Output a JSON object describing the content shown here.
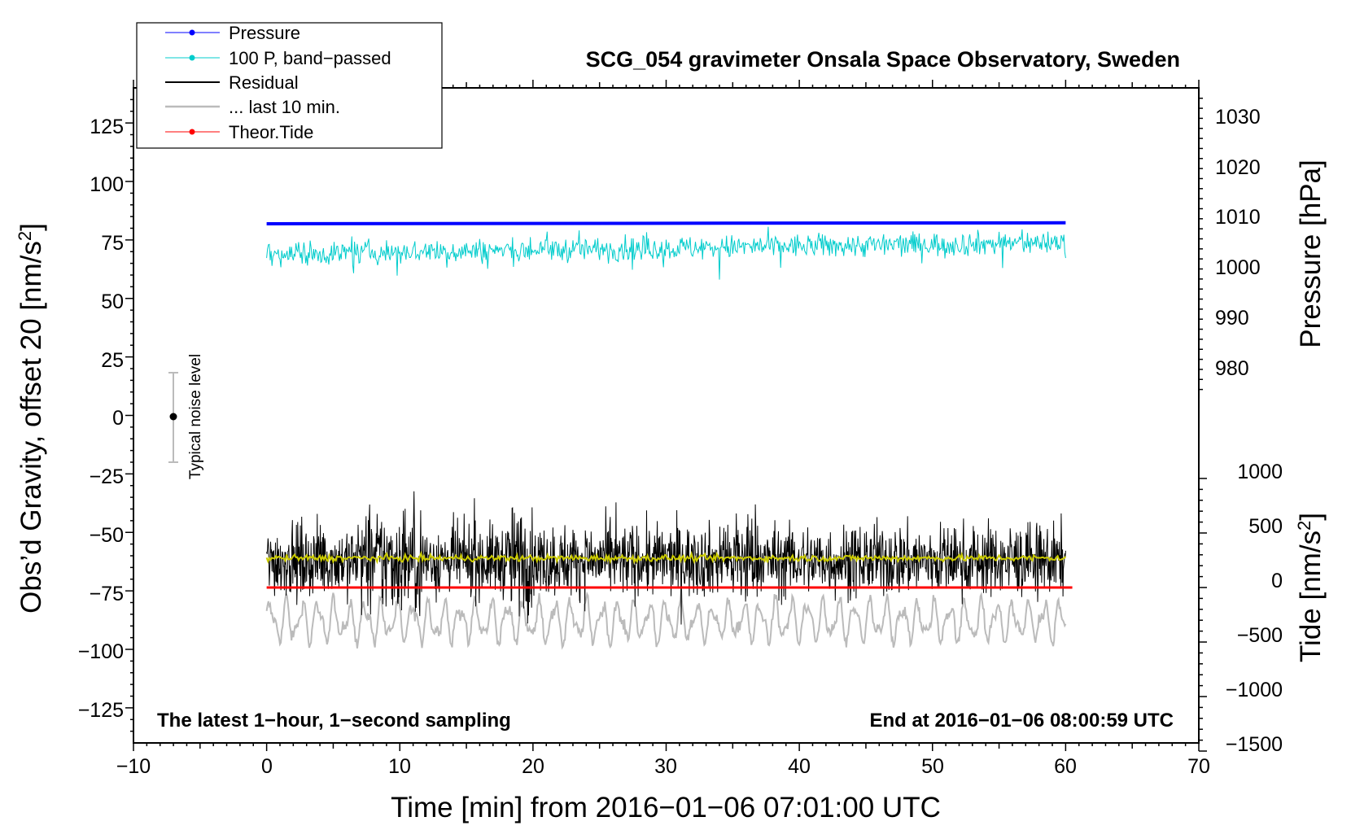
{
  "chart_data": {
    "type": "line",
    "title": "SCG_054 gravimeter Onsala Space Observatory, Sweden",
    "xlabel": "Time [min] from 2016−01−06 07:01:00 UTC",
    "ylabel_left": "Obs’d Gravity, offset 20 [nm/s",
    "ylabel_left_sup": "2",
    "ylabel_left_end": "]",
    "ylabel_right_pressure": "Pressure [hPa]",
    "ylabel_right_tide": "Tide [nm/s",
    "ylabel_right_tide_sup": "2",
    "ylabel_right_tide_end": "]",
    "xlim": [
      -10,
      70
    ],
    "ylim_left": [
      -140,
      140
    ],
    "pressure_range": [
      970,
      1035
    ],
    "tide_range": [
      -1500,
      1000
    ],
    "x_ticks": [
      "−10",
      "0",
      "10",
      "20",
      "30",
      "40",
      "50",
      "60",
      "70"
    ],
    "y_left_ticks": [
      "125",
      "100",
      "75",
      "50",
      "25",
      "0",
      "−25",
      "−50",
      "−75",
      "−100",
      "−125"
    ],
    "pressure_ticks": [
      "1030",
      "1020",
      "1010",
      "1000",
      "990",
      "980"
    ],
    "tide_ticks": [
      "1000",
      "500",
      "0",
      "−500",
      "−1000",
      "−1500"
    ],
    "legend": [
      {
        "label": "Pressure",
        "color": "#0000ff",
        "marker": true
      },
      {
        "label": "100 P, band−passed",
        "color": "#00cccc",
        "marker": true
      },
      {
        "label": "Residual",
        "color": "#000000",
        "marker": false
      },
      {
        "label": "... last 10 min.",
        "color": "#bbbbbb",
        "marker": false
      },
      {
        "label": "Theor.Tide",
        "color": "#ff0000",
        "marker": true
      }
    ],
    "series": [
      {
        "name": "Pressure",
        "axis": "pressure",
        "unit": "hPa",
        "color": "#0000ff",
        "x": [
          0,
          60
        ],
        "values": [
          1010.0,
          1010.2
        ]
      },
      {
        "name": "100 P, band−passed",
        "axis": "left",
        "color": "#00cccc",
        "x_range": [
          0,
          60
        ],
        "center": 69,
        "amplitude": 8
      },
      {
        "name": "Residual",
        "axis": "left",
        "color": "#000000",
        "x_range": [
          0,
          60
        ],
        "center": -62,
        "amplitude": 14
      },
      {
        "name": "Residual smoothed",
        "axis": "left",
        "color": "#cccc00",
        "x_range": [
          0,
          60
        ],
        "center": -61
      },
      {
        "name": "... last 10 min.",
        "axis": "left",
        "color": "#bbbbbb",
        "x_range": [
          0,
          60
        ],
        "center": -88,
        "amplitude": 10
      },
      {
        "name": "Theor.Tide",
        "axis": "tide",
        "unit": "nm/s2",
        "color": "#ff0000",
        "x": [
          0,
          60.5
        ],
        "values": [
          0,
          0
        ]
      }
    ],
    "noise_bar": {
      "label": "Typical noise level",
      "x": -7,
      "center": 0,
      "low": -20,
      "high": 20
    },
    "annotation_left": "The latest 1−hour, 1−second sampling",
    "annotation_right": "End at 2016−01−06 08:00:59 UTC"
  }
}
